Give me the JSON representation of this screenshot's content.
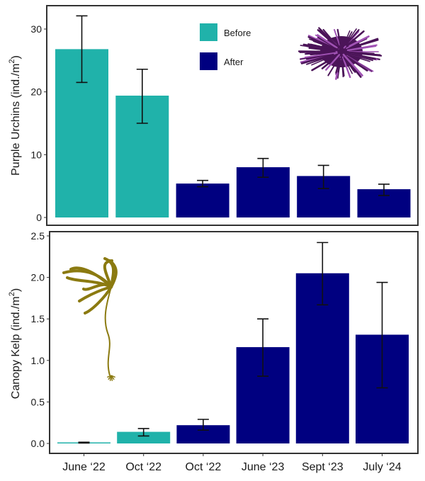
{
  "colors": {
    "before": "#20b2aa",
    "after": "#000080",
    "axis": "#333333",
    "errorbar": "#111111",
    "urchin": "#4b1458",
    "urchin_spine": "#a052b4",
    "kelp": "#8b7a10"
  },
  "chart_data": [
    {
      "type": "bar",
      "title": "",
      "ylabel": "Purple Urchins (ind./m2)",
      "ylabel_main": "Purple Urchins (ind./m",
      "ylabel_sup": "2",
      "ylabel_end": ")",
      "xlabel": "",
      "ylim": [
        0,
        32.5
      ],
      "yticks": [
        0,
        10,
        20,
        30
      ],
      "ytick_labels": [
        "0",
        "10",
        "20",
        "30"
      ],
      "grid": false,
      "legend": {
        "position": "top-center",
        "entries": [
          {
            "label": "Before",
            "color_key": "before"
          },
          {
            "label": "After",
            "color_key": "after"
          }
        ]
      },
      "illustration": "purple-urchin",
      "categories": [
        "June ‘22",
        "Oct ‘22",
        "Oct ‘22",
        "June ‘23",
        "Sept ‘23",
        "July ‘24"
      ],
      "groups": [
        "Before",
        "Before",
        "After",
        "After",
        "After",
        "After"
      ],
      "values": [
        26.8,
        19.4,
        5.4,
        8.0,
        6.6,
        4.5
      ],
      "error_low": [
        21.5,
        15.0,
        4.9,
        6.4,
        4.6,
        3.5
      ],
      "error_high": [
        32.1,
        23.6,
        5.9,
        9.4,
        8.3,
        5.3
      ]
    },
    {
      "type": "bar",
      "title": "",
      "ylabel": "Canopy Kelp (ind./m2)",
      "ylabel_main": "Canopy Kelp (ind./m",
      "ylabel_sup": "2",
      "ylabel_end": ")",
      "xlabel": "",
      "ylim": [
        -0.05,
        2.52
      ],
      "yticks": [
        0.0,
        0.5,
        1.0,
        1.5,
        2.0,
        2.5
      ],
      "ytick_labels": [
        "0.0",
        "0.5",
        "1.0",
        "1.5",
        "2.0",
        "2.5"
      ],
      "grid": false,
      "illustration": "bull-kelp",
      "categories": [
        "June ‘22",
        "Oct ‘22",
        "Oct ‘22",
        "June ‘23",
        "Sept ‘23",
        "July ‘24"
      ],
      "groups": [
        "Before",
        "Before",
        "After",
        "After",
        "After",
        "After"
      ],
      "values": [
        0.01,
        0.14,
        0.22,
        1.16,
        2.05,
        1.31
      ],
      "error_low": [
        0.005,
        0.09,
        0.16,
        0.81,
        1.67,
        0.67
      ],
      "error_high": [
        0.015,
        0.18,
        0.29,
        1.5,
        2.42,
        1.94
      ]
    }
  ]
}
